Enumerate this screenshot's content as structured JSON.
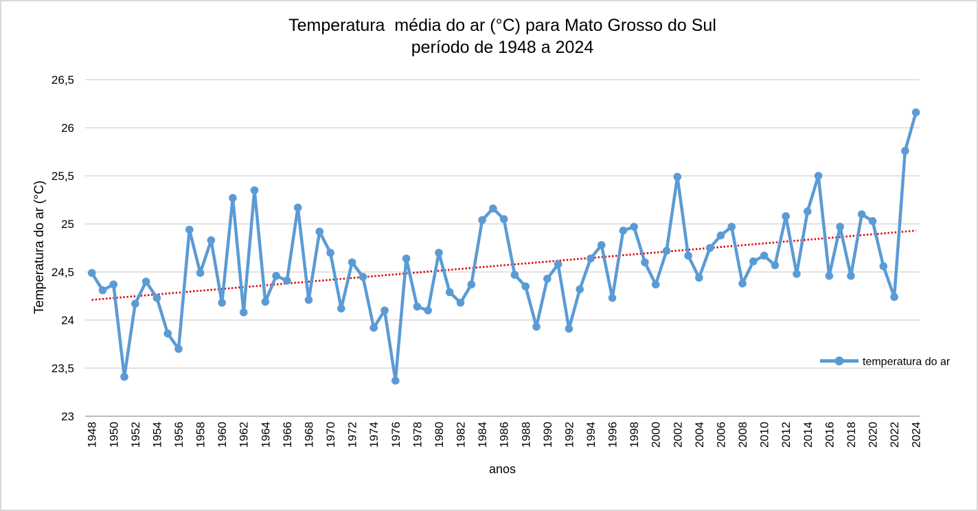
{
  "title": {
    "line1": "Temperatura  média do ar (°C) para Mato Grosso do Sul",
    "line2": "período de 1948 a 2024"
  },
  "axes": {
    "y_title": "Temperatura do ar (°C)",
    "x_title": "anos",
    "y_tick_labels": [
      "26,5",
      "26",
      "25,5",
      "25",
      "24,5",
      "24",
      "23,5",
      "23"
    ],
    "y_tick_values": [
      26.5,
      26,
      25.5,
      25,
      24.5,
      24,
      23.5,
      23
    ],
    "x_tick_years": [
      1948,
      1950,
      1952,
      1954,
      1956,
      1958,
      1960,
      1962,
      1964,
      1966,
      1968,
      1970,
      1972,
      1974,
      1976,
      1978,
      1980,
      1982,
      1984,
      1986,
      1988,
      1990,
      1992,
      1994,
      1996,
      1998,
      2000,
      2002,
      2004,
      2006,
      2008,
      2010,
      2012,
      2014,
      2016,
      2018,
      2020,
      2022,
      2024
    ]
  },
  "legend": {
    "label": "temperatura do ar",
    "position": "right"
  },
  "colors": {
    "series": "#5B9BD5",
    "trend": "#E00000",
    "gridline": "#D9D9D9",
    "axis_line": "#A6A6A6",
    "text": "#000000"
  },
  "chart_data": {
    "type": "line",
    "title": "Temperatura  média do ar (°C) para Mato Grosso do Sul período de 1948 a 2024",
    "xlabel": "anos",
    "ylabel": "Temperatura do ar (°C)",
    "ylim": [
      23,
      26.5
    ],
    "grid": "horizontal",
    "legend_position": "right",
    "x": [
      1948,
      1949,
      1950,
      1951,
      1952,
      1953,
      1954,
      1955,
      1956,
      1957,
      1958,
      1959,
      1960,
      1961,
      1962,
      1963,
      1964,
      1965,
      1966,
      1967,
      1968,
      1969,
      1970,
      1971,
      1972,
      1973,
      1974,
      1975,
      1976,
      1977,
      1978,
      1979,
      1980,
      1981,
      1982,
      1983,
      1984,
      1985,
      1986,
      1987,
      1988,
      1989,
      1990,
      1991,
      1992,
      1993,
      1994,
      1995,
      1996,
      1997,
      1998,
      1999,
      2000,
      2001,
      2002,
      2003,
      2004,
      2005,
      2006,
      2007,
      2008,
      2009,
      2010,
      2011,
      2012,
      2013,
      2014,
      2015,
      2016,
      2017,
      2018,
      2019,
      2020,
      2021,
      2022,
      2023,
      2024
    ],
    "series": [
      {
        "name": "temperatura do ar",
        "values": [
          24.49,
          24.31,
          24.37,
          23.41,
          24.17,
          24.4,
          24.23,
          23.86,
          23.7,
          24.94,
          24.49,
          24.83,
          24.18,
          25.27,
          24.08,
          25.35,
          24.19,
          24.46,
          24.41,
          25.17,
          24.21,
          24.92,
          24.7,
          24.12,
          24.6,
          24.45,
          23.92,
          24.1,
          23.37,
          24.64,
          24.14,
          24.1,
          24.7,
          24.29,
          24.18,
          24.37,
          25.04,
          25.16,
          25.05,
          24.47,
          24.35,
          23.93,
          24.43,
          24.58,
          23.91,
          24.32,
          24.64,
          24.78,
          24.23,
          24.93,
          24.97,
          24.6,
          24.37,
          24.72,
          25.49,
          24.67,
          24.44,
          24.75,
          24.88,
          24.97,
          24.38,
          24.61,
          24.67,
          24.57,
          25.08,
          24.48,
          25.13,
          25.5,
          24.46,
          24.97,
          24.46,
          25.1,
          25.03,
          24.56,
          24.24,
          25.76,
          26.16
        ]
      }
    ],
    "trendline": {
      "type": "linear",
      "style": "dotted",
      "start_value": 24.21,
      "end_value": 24.93
    }
  }
}
